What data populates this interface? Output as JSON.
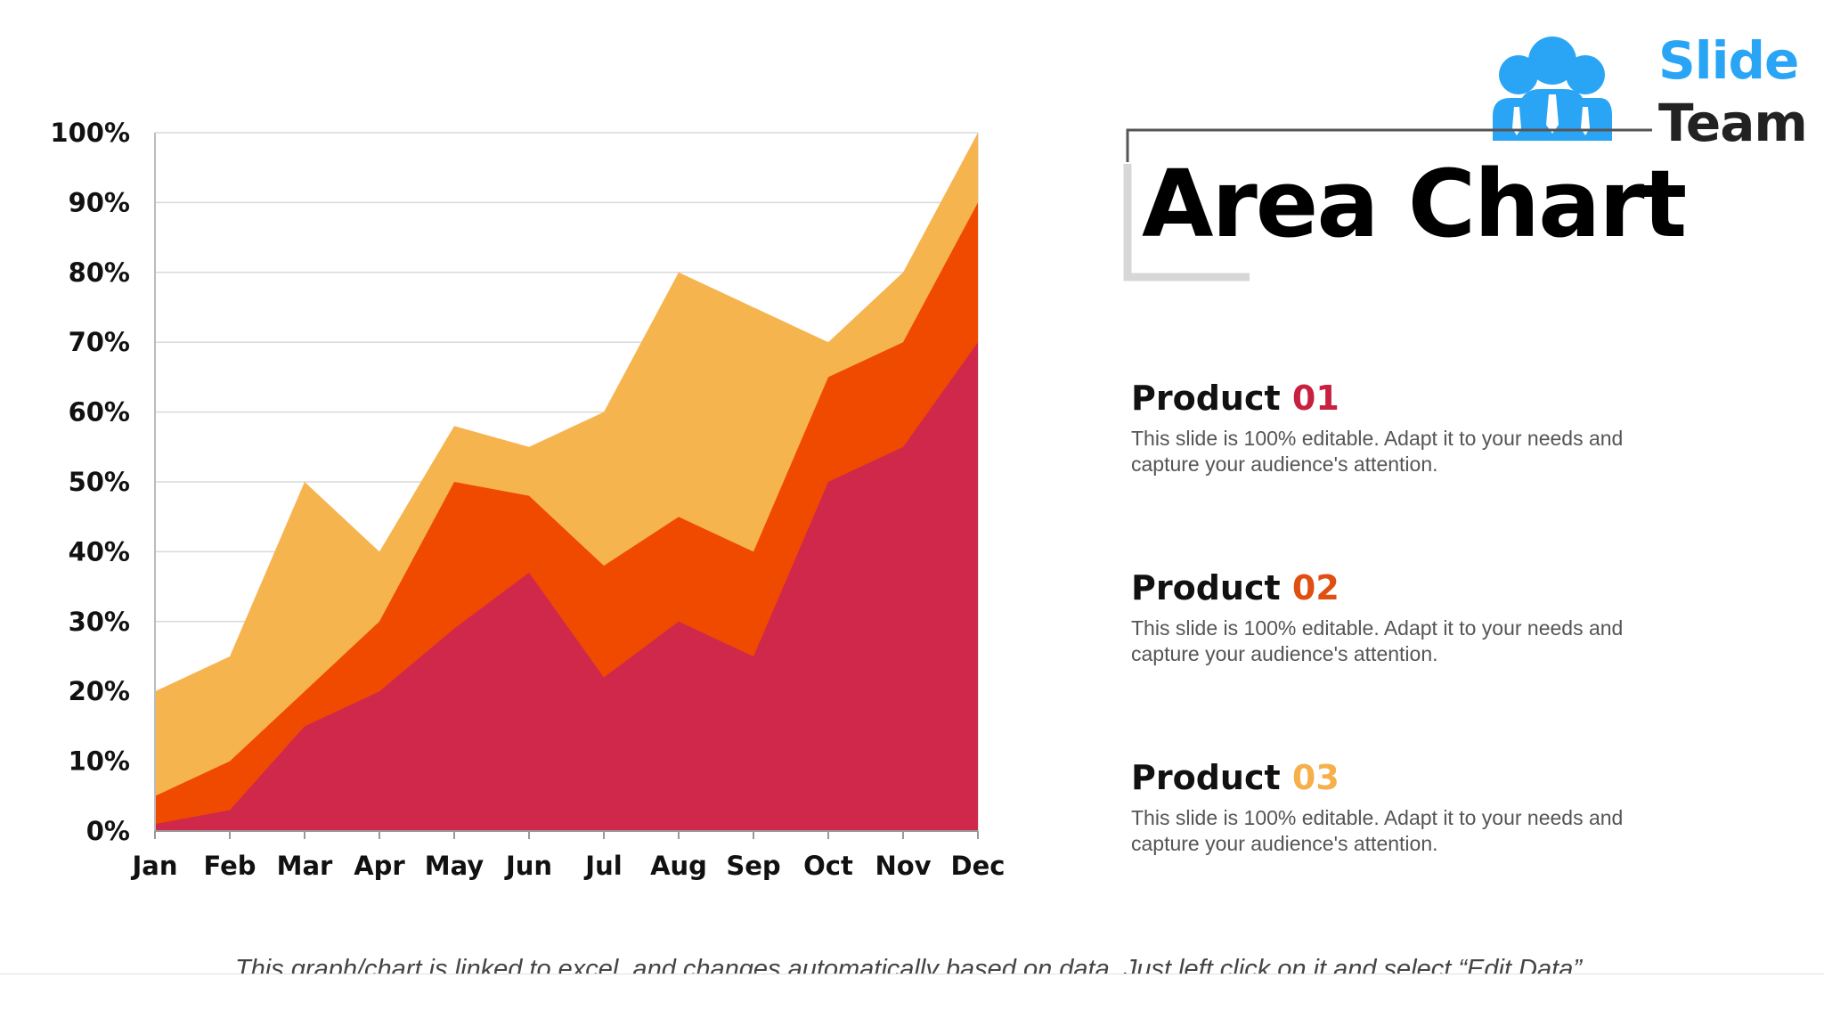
{
  "title": "Area Chart",
  "logo": {
    "line1": "Slide",
    "line2": "Team"
  },
  "products": [
    {
      "label": "Product",
      "number": "01",
      "color": "#c8213f",
      "description": "This slide is 100% editable. Adapt it to your needs and capture your audience's attention."
    },
    {
      "label": "Product",
      "number": "02",
      "color": "#e04f12",
      "description": "This slide is 100% editable. Adapt it to your needs and capture your audience's attention."
    },
    {
      "label": "Product",
      "number": "03",
      "color": "#f5b04c",
      "description": "This slide is 100% editable. Adapt it to your needs and capture your audience's attention."
    }
  ],
  "footnote": "This graph/chart is linked to excel, and changes automatically based on data. Just left click on it and select “Edit Data”.",
  "chart_data": {
    "type": "area",
    "stacked": false,
    "categories": [
      "Jan",
      "Feb",
      "Mar",
      "Apr",
      "May",
      "Jun",
      "Jul",
      "Aug",
      "Sep",
      "Oct",
      "Nov",
      "Dec"
    ],
    "y_ticks": [
      "0%",
      "10%",
      "20%",
      "30%",
      "40%",
      "50%",
      "60%",
      "70%",
      "80%",
      "90%",
      "100%"
    ],
    "ylim": [
      0,
      100
    ],
    "grid": true,
    "series": [
      {
        "name": "Product 03",
        "color": "#f6b44f",
        "values": [
          20,
          25,
          50,
          40,
          58,
          55,
          60,
          80,
          75,
          70,
          80,
          100
        ]
      },
      {
        "name": "Product 02",
        "color": "#f04a00",
        "values": [
          5,
          10,
          20,
          30,
          50,
          48,
          38,
          45,
          40,
          65,
          70,
          90
        ]
      },
      {
        "name": "Product 01",
        "color": "#d0284b",
        "values": [
          1,
          3,
          15,
          20,
          29,
          37,
          22,
          30,
          25,
          50,
          55,
          70
        ]
      }
    ]
  }
}
